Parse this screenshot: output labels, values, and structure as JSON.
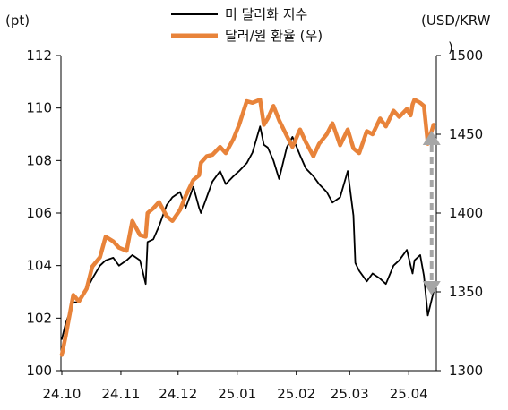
{
  "chart_data": {
    "type": "line",
    "left_unit": "(pt)",
    "right_unit": "(USD/KRW",
    "right_unit_close": ")",
    "x_ticks": [
      "24.10",
      "24.11",
      "24.12",
      "25.01",
      "25.02",
      "25.03",
      "25.04"
    ],
    "x_range": [
      "2024-10-01",
      "2025-04-15"
    ],
    "y_left": {
      "ticks": [
        "100",
        "102",
        "104",
        "106",
        "108",
        "110",
        "112"
      ],
      "ylim": [
        100,
        112
      ]
    },
    "y_right": {
      "ticks": [
        "1300",
        "1350",
        "1400",
        "1450",
        "1500"
      ],
      "ylim": [
        1300,
        1500
      ]
    },
    "legend_position": "top-center",
    "series": [
      {
        "name": "미 달러화 지수",
        "axis": "left",
        "color": "#000000",
        "points": [
          [
            "2024-10-01",
            101.2
          ],
          [
            "2024-10-03",
            101.8
          ],
          [
            "2024-10-07",
            102.6
          ],
          [
            "2024-10-10",
            102.6
          ],
          [
            "2024-10-14",
            103.1
          ],
          [
            "2024-10-17",
            103.5
          ],
          [
            "2024-10-21",
            104.0
          ],
          [
            "2024-10-24",
            104.2
          ],
          [
            "2024-10-28",
            104.3
          ],
          [
            "2024-10-31",
            104.0
          ],
          [
            "2024-11-04",
            104.2
          ],
          [
            "2024-11-07",
            104.4
          ],
          [
            "2024-11-11",
            104.2
          ],
          [
            "2024-11-12",
            103.9
          ],
          [
            "2024-11-14",
            103.3
          ],
          [
            "2024-11-15",
            104.9
          ],
          [
            "2024-11-18",
            105.0
          ],
          [
            "2024-11-21",
            105.5
          ],
          [
            "2024-11-25",
            106.3
          ],
          [
            "2024-11-28",
            106.6
          ],
          [
            "2024-12-02",
            106.8
          ],
          [
            "2024-12-05",
            106.2
          ],
          [
            "2024-12-09",
            107.0
          ],
          [
            "2024-12-12",
            106.2
          ],
          [
            "2024-12-13",
            106.0
          ],
          [
            "2024-12-16",
            106.6
          ],
          [
            "2024-12-19",
            107.2
          ],
          [
            "2024-12-23",
            107.6
          ],
          [
            "2024-12-26",
            107.1
          ],
          [
            "2024-12-30",
            107.4
          ],
          [
            "2025-01-02",
            107.6
          ],
          [
            "2025-01-06",
            107.9
          ],
          [
            "2025-01-09",
            108.3
          ],
          [
            "2025-01-13",
            109.3
          ],
          [
            "2025-01-15",
            108.6
          ],
          [
            "2025-01-17",
            108.5
          ],
          [
            "2025-01-20",
            108.0
          ],
          [
            "2025-01-23",
            107.3
          ],
          [
            "2025-01-27",
            108.5
          ],
          [
            "2025-01-30",
            108.9
          ],
          [
            "2025-02-03",
            108.2
          ],
          [
            "2025-02-06",
            107.7
          ],
          [
            "2025-02-10",
            107.4
          ],
          [
            "2025-02-13",
            107.1
          ],
          [
            "2025-02-17",
            106.8
          ],
          [
            "2025-02-20",
            106.4
          ],
          [
            "2025-02-24",
            106.6
          ],
          [
            "2025-02-28",
            107.6
          ],
          [
            "2025-03-03",
            105.9
          ],
          [
            "2025-03-04",
            104.1
          ],
          [
            "2025-03-06",
            103.8
          ],
          [
            "2025-03-10",
            103.4
          ],
          [
            "2025-03-13",
            103.7
          ],
          [
            "2025-03-17",
            103.5
          ],
          [
            "2025-03-20",
            103.3
          ],
          [
            "2025-03-24",
            104.0
          ],
          [
            "2025-03-27",
            104.2
          ],
          [
            "2025-03-31",
            104.6
          ],
          [
            "2025-04-02",
            104.0
          ],
          [
            "2025-04-03",
            103.7
          ],
          [
            "2025-04-04",
            104.2
          ],
          [
            "2025-04-07",
            104.4
          ],
          [
            "2025-04-09",
            103.6
          ],
          [
            "2025-04-11",
            102.1
          ],
          [
            "2025-04-14",
            103.0
          ]
        ]
      },
      {
        "name": "달러/원 환율 (우)",
        "axis": "right",
        "color": "#e8833a",
        "points": [
          [
            "2024-10-01",
            1310
          ],
          [
            "2024-10-03",
            1322
          ],
          [
            "2024-10-07",
            1348
          ],
          [
            "2024-10-10",
            1344
          ],
          [
            "2024-10-14",
            1352
          ],
          [
            "2024-10-17",
            1366
          ],
          [
            "2024-10-21",
            1372
          ],
          [
            "2024-10-24",
            1385
          ],
          [
            "2024-10-28",
            1382
          ],
          [
            "2024-10-31",
            1378
          ],
          [
            "2024-11-04",
            1376
          ],
          [
            "2024-11-07",
            1395
          ],
          [
            "2024-11-11",
            1386
          ],
          [
            "2024-11-14",
            1385
          ],
          [
            "2024-11-15",
            1400
          ],
          [
            "2024-11-18",
            1403
          ],
          [
            "2024-11-21",
            1407
          ],
          [
            "2024-11-25",
            1398
          ],
          [
            "2024-11-28",
            1395
          ],
          [
            "2024-12-02",
            1402
          ],
          [
            "2024-12-05",
            1411
          ],
          [
            "2024-12-09",
            1421
          ],
          [
            "2024-12-12",
            1424
          ],
          [
            "2024-12-13",
            1432
          ],
          [
            "2024-12-16",
            1436
          ],
          [
            "2024-12-19",
            1437
          ],
          [
            "2024-12-23",
            1442
          ],
          [
            "2024-12-26",
            1438
          ],
          [
            "2024-12-30",
            1447
          ],
          [
            "2025-01-02",
            1456
          ],
          [
            "2025-01-06",
            1471
          ],
          [
            "2025-01-09",
            1470
          ],
          [
            "2025-01-13",
            1472
          ],
          [
            "2025-01-15",
            1456
          ],
          [
            "2025-01-17",
            1460
          ],
          [
            "2025-01-20",
            1468
          ],
          [
            "2025-01-23",
            1459
          ],
          [
            "2025-01-27",
            1449
          ],
          [
            "2025-01-30",
            1442
          ],
          [
            "2025-02-03",
            1453
          ],
          [
            "2025-02-06",
            1445
          ],
          [
            "2025-02-10",
            1436
          ],
          [
            "2025-02-13",
            1444
          ],
          [
            "2025-02-17",
            1450
          ],
          [
            "2025-02-20",
            1457
          ],
          [
            "2025-02-24",
            1443
          ],
          [
            "2025-02-28",
            1453
          ],
          [
            "2025-03-03",
            1441
          ],
          [
            "2025-03-06",
            1438
          ],
          [
            "2025-03-10",
            1452
          ],
          [
            "2025-03-13",
            1450
          ],
          [
            "2025-03-17",
            1460
          ],
          [
            "2025-03-20",
            1455
          ],
          [
            "2025-03-24",
            1465
          ],
          [
            "2025-03-27",
            1461
          ],
          [
            "2025-03-31",
            1466
          ],
          [
            "2025-04-02",
            1462
          ],
          [
            "2025-04-03",
            1469
          ],
          [
            "2025-04-04",
            1472
          ],
          [
            "2025-04-07",
            1470
          ],
          [
            "2025-04-09",
            1468
          ],
          [
            "2025-04-11",
            1444
          ],
          [
            "2025-04-14",
            1456
          ]
        ]
      }
    ],
    "annotation": {
      "type": "double-arrow",
      "style": "dashed",
      "color": "#a6a6a6",
      "date": "2025-04-13",
      "from_right_value": 1350,
      "to_right_value": 1450
    }
  }
}
